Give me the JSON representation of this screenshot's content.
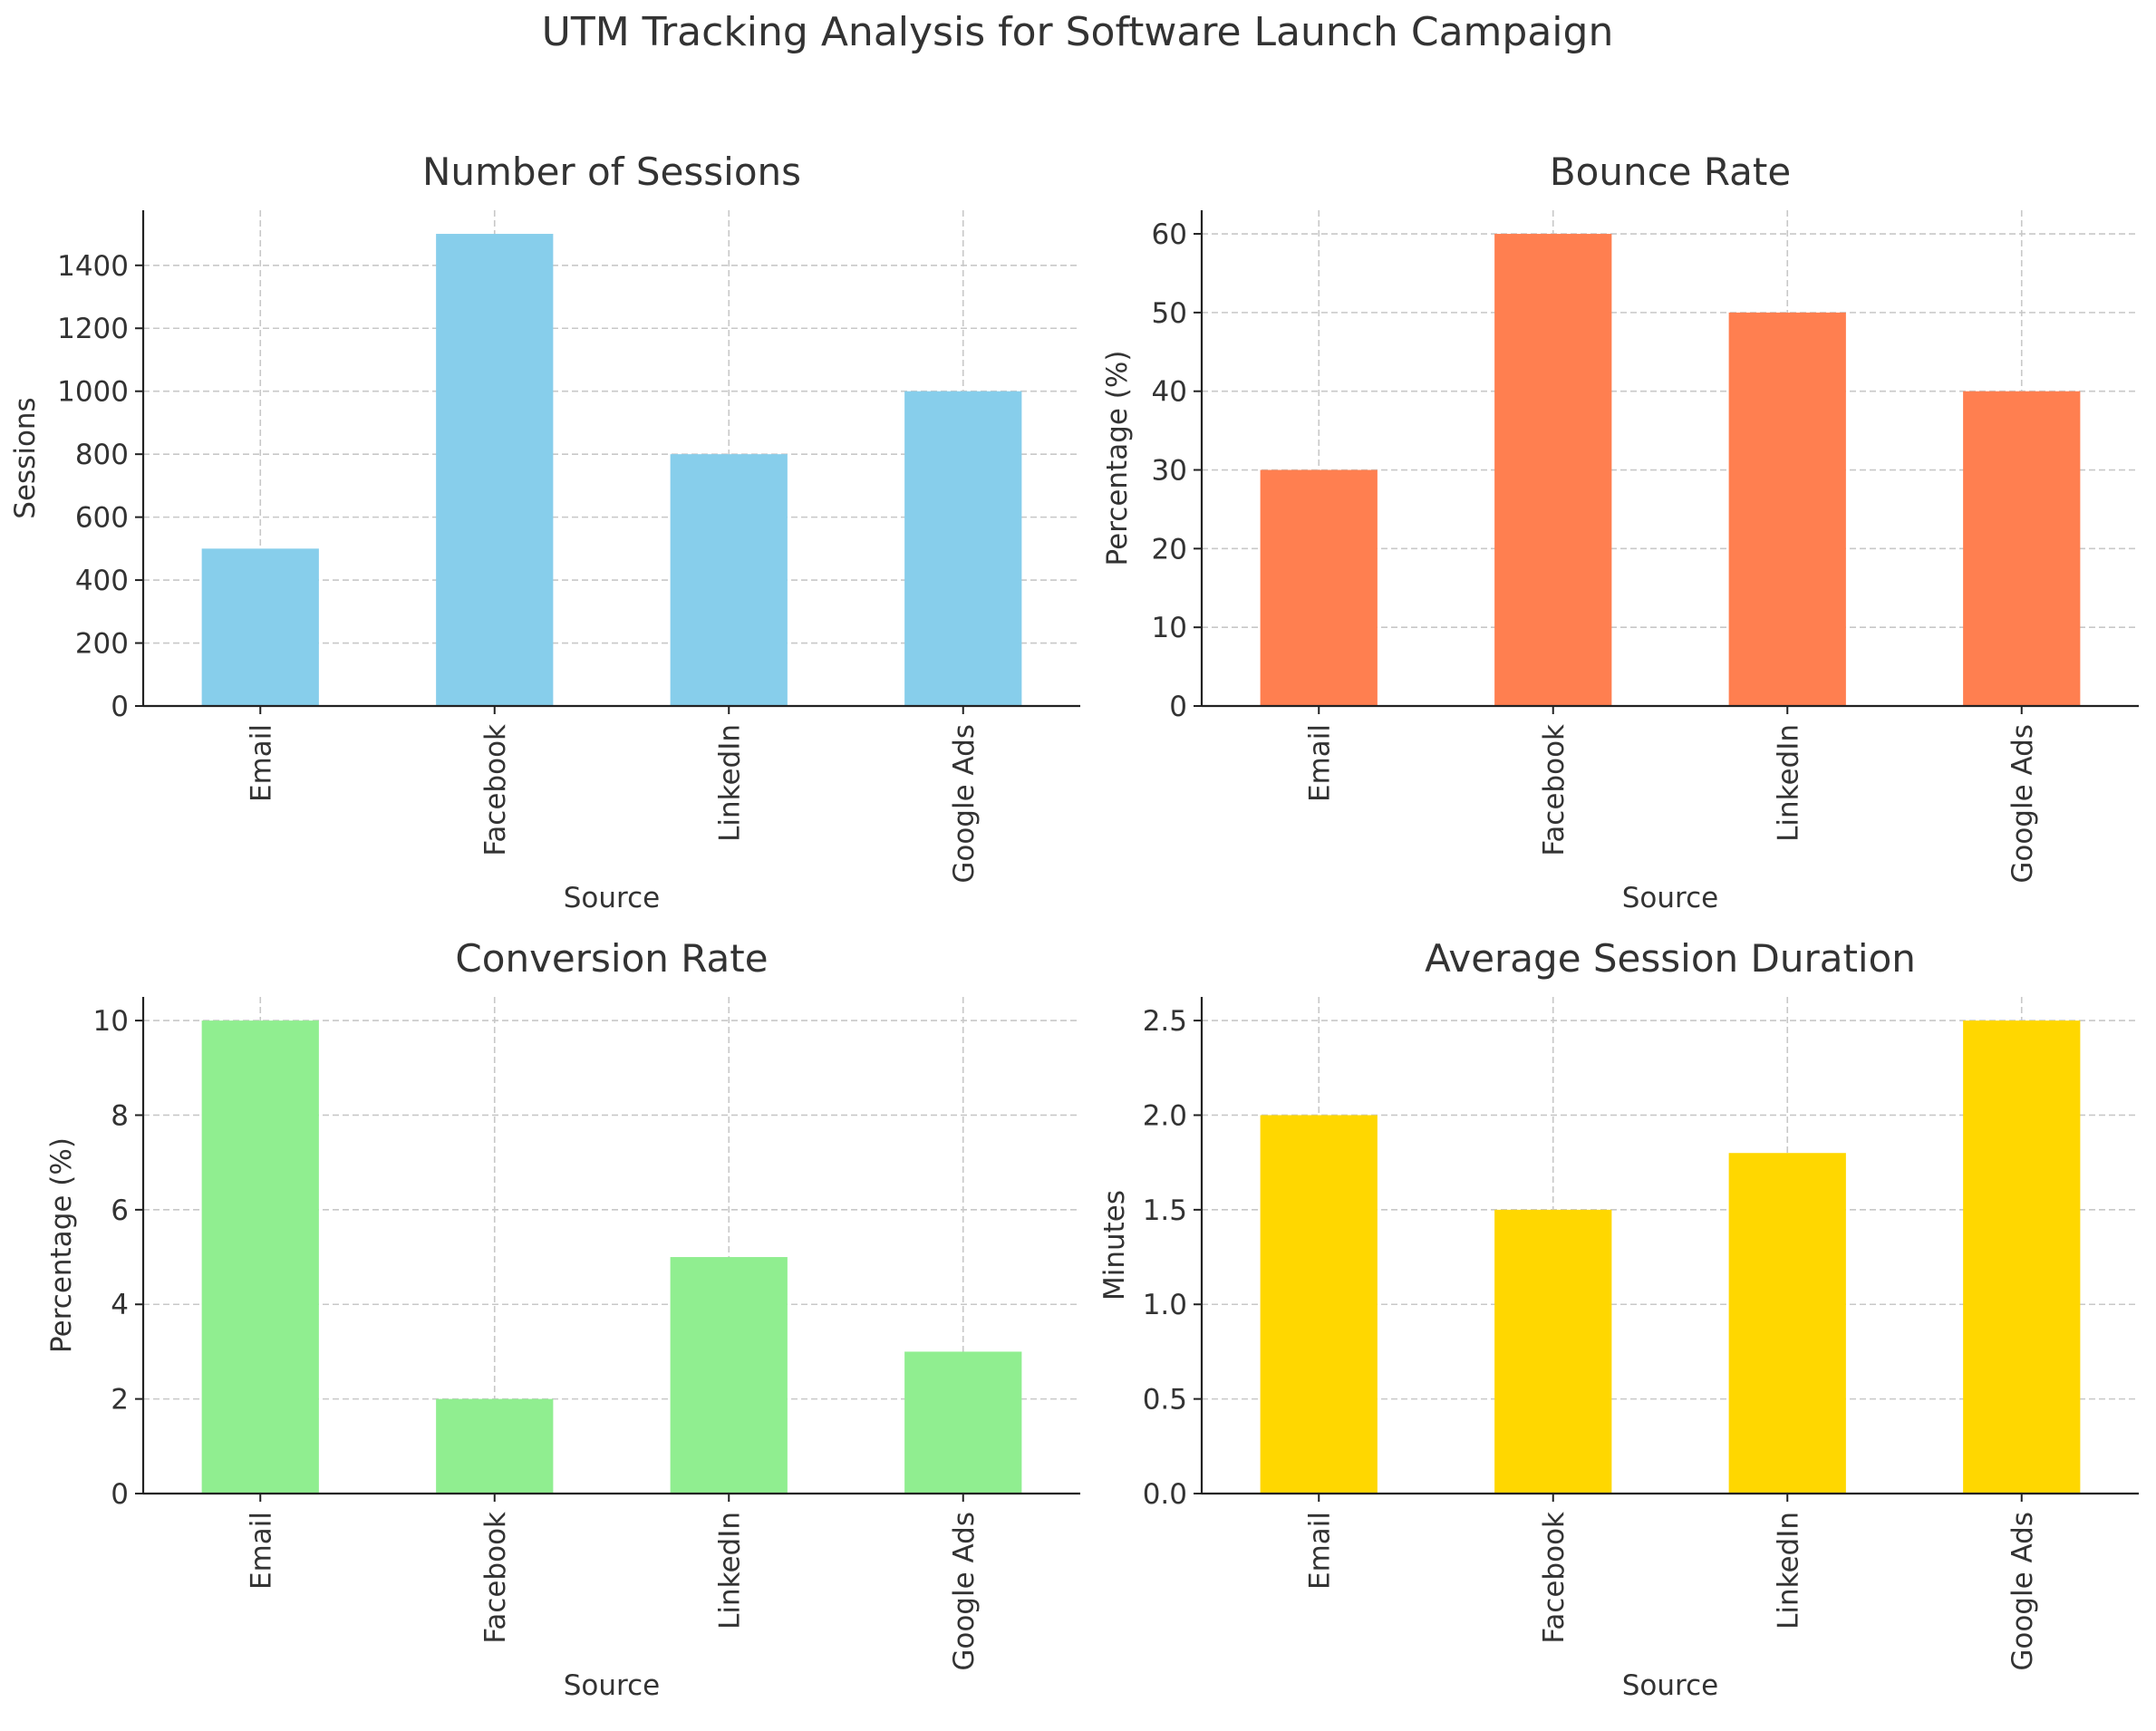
{
  "figure": {
    "title": "UTM Tracking Analysis for Software Launch Campaign"
  },
  "chart_data": [
    {
      "type": "bar",
      "title": "Number of Sessions",
      "xlabel": "Source",
      "ylabel": "Sessions",
      "categories": [
        "Email",
        "Facebook",
        "LinkedIn",
        "Google Ads"
      ],
      "values": [
        500,
        1500,
        800,
        1000
      ],
      "ylim": [
        0,
        1575
      ],
      "yticks": [
        0,
        200,
        400,
        600,
        800,
        1000,
        1200,
        1400
      ],
      "ytick_labels": [
        "0",
        "200",
        "400",
        "600",
        "800",
        "1000",
        "1200",
        "1400"
      ],
      "color": "#87ceeb",
      "grid": true,
      "legend": "none"
    },
    {
      "type": "bar",
      "title": "Bounce Rate",
      "xlabel": "Source",
      "ylabel": "Percentage (%)",
      "categories": [
        "Email",
        "Facebook",
        "LinkedIn",
        "Google Ads"
      ],
      "values": [
        30,
        60,
        50,
        40
      ],
      "ylim": [
        0,
        63
      ],
      "yticks": [
        0,
        10,
        20,
        30,
        40,
        50,
        60
      ],
      "ytick_labels": [
        "0",
        "10",
        "20",
        "30",
        "40",
        "50",
        "60"
      ],
      "color": "#ff7f50",
      "grid": true,
      "legend": "none"
    },
    {
      "type": "bar",
      "title": "Conversion Rate",
      "xlabel": "Source",
      "ylabel": "Percentage (%)",
      "categories": [
        "Email",
        "Facebook",
        "LinkedIn",
        "Google Ads"
      ],
      "values": [
        10,
        2,
        5,
        3
      ],
      "ylim": [
        0,
        10.5
      ],
      "yticks": [
        0,
        2,
        4,
        6,
        8,
        10
      ],
      "ytick_labels": [
        "0",
        "2",
        "4",
        "6",
        "8",
        "10"
      ],
      "color": "#90ee90",
      "grid": true,
      "legend": "none"
    },
    {
      "type": "bar",
      "title": "Average Session Duration",
      "xlabel": "Source",
      "ylabel": "Minutes",
      "categories": [
        "Email",
        "Facebook",
        "LinkedIn",
        "Google Ads"
      ],
      "values": [
        2.0,
        1.5,
        1.8,
        2.5
      ],
      "ylim": [
        0,
        2.625
      ],
      "yticks": [
        0,
        0.5,
        1.0,
        1.5,
        2.0,
        2.5
      ],
      "ytick_labels": [
        "0.0",
        "0.5",
        "1.0",
        "1.5",
        "2.0",
        "2.5"
      ],
      "color": "#ffd700",
      "grid": true,
      "legend": "none"
    }
  ]
}
